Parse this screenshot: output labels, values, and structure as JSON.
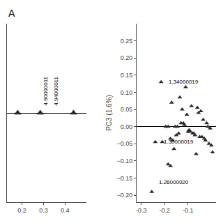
{
  "chart_data": [
    {
      "type": "scatter",
      "title": "A",
      "x": [
        0.18,
        0.285,
        0.44
      ],
      "values": [
        0.0,
        0.0,
        0.0
      ],
      "marker": "triangle-up",
      "color": "#2a2a2a",
      "annotations": [
        {
          "text": "4.90000011",
          "x": 0.288,
          "y": 0.02
        },
        {
          "text": "4.94000011",
          "x": 0.337,
          "y": 0.02
        }
      ],
      "xlim": [
        0.13,
        0.5
      ],
      "ylim": [
        -0.3,
        0.3
      ],
      "xticks": [
        0.2,
        0.3,
        0.4
      ],
      "yticks": [],
      "tick_labels": "x",
      "grid": false
    },
    {
      "type": "scatter",
      "ylabel": "PC3 (1.6%)",
      "x": [
        -0.255,
        -0.24,
        -0.215,
        -0.21,
        -0.195,
        -0.185,
        -0.175,
        -0.165,
        -0.155,
        -0.145,
        -0.135,
        -0.13,
        -0.125,
        -0.12,
        -0.115,
        -0.11,
        -0.105,
        -0.1,
        -0.095,
        -0.09,
        -0.085,
        -0.08,
        -0.075,
        -0.07,
        -0.065,
        -0.06,
        -0.055,
        -0.05,
        -0.045,
        -0.04,
        -0.035,
        -0.03,
        -0.025,
        -0.02,
        -0.015,
        -0.01,
        -0.005,
        0.0,
        0.005,
        -0.185,
        -0.175,
        -0.17,
        -0.16,
        -0.15,
        -0.14
      ],
      "values": [
        -0.19,
        -0.045,
        0.13,
        -0.045,
        0.0,
        0.0,
        -0.035,
        -0.04,
        0.0,
        0.0,
        0.085,
        0.01,
        0.05,
        0.01,
        0.005,
        0.115,
        0.035,
        -0.015,
        -0.01,
        -0.015,
        0.06,
        -0.02,
        -0.02,
        -0.025,
        -0.08,
        0.055,
        0.04,
        -0.03,
        0.045,
        -0.03,
        0.02,
        -0.035,
        -0.04,
        0.01,
        0.0,
        -0.05,
        -0.005,
        -0.055,
        -0.075,
        -0.11,
        -0.115,
        0.07,
        -0.065,
        -0.025,
        -0.02
      ],
      "marker": "triangle-up",
      "color": "#2a2a2a",
      "annotations": [
        {
          "text": "1.26000020",
          "x": -0.23,
          "y": -0.175
        },
        {
          "text": "1.30000019",
          "x": -0.21,
          "y": -0.058
        },
        {
          "text": "1.34000019",
          "x": -0.19,
          "y": 0.117
        }
      ],
      "xlim": [
        -0.32,
        0.02
      ],
      "ylim": [
        -0.22,
        0.3
      ],
      "xticks": [
        -0.3,
        -0.2,
        -0.1
      ],
      "yticks": [
        {
          "value": -0.2,
          "label": "−0.20"
        },
        {
          "value": -0.15,
          "label": "−0.15"
        },
        {
          "value": -0.1,
          "label": "−0.10"
        },
        {
          "value": -0.05,
          "label": "−0.05"
        },
        {
          "value": 0.0,
          "label": "0.00"
        },
        {
          "value": 0.05,
          "label": "0.05"
        },
        {
          "value": 0.1,
          "label": "0.10"
        },
        {
          "value": 0.15,
          "label": "0.15"
        },
        {
          "value": 0.2,
          "label": "0.20"
        },
        {
          "value": 0.25,
          "label": "0.25"
        }
      ],
      "grid": false
    }
  ]
}
